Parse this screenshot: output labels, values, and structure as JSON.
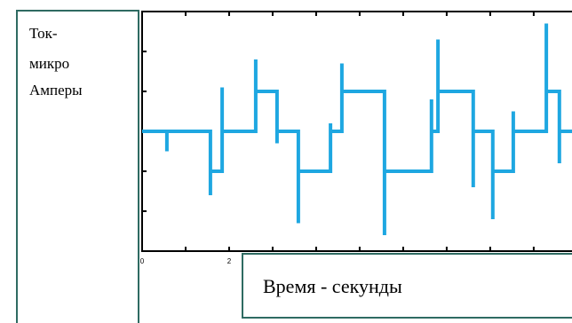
{
  "chart_data": {
    "type": "line",
    "xlabel": "Время - секунды",
    "ylabel_lines": [
      "Ток-",
      "микро",
      "Амперы"
    ],
    "xlim": [
      0,
      9.88
    ],
    "ylim": [
      -3,
      3
    ],
    "x_ticks": [
      0,
      1,
      2,
      3,
      4,
      5,
      6,
      7,
      8,
      9
    ],
    "x_tick_labels": [
      {
        "value": 0,
        "label": "0"
      },
      {
        "value": 2,
        "label": "2"
      }
    ],
    "y_ticks": [
      -2,
      -1,
      0,
      1,
      2
    ],
    "grid": false,
    "series": [
      {
        "x": [
          0,
          0.57,
          0.57,
          0.57,
          1.57,
          1.57,
          1.57,
          1.84,
          1.84,
          1.84,
          2.61,
          2.61,
          2.61,
          3.1,
          3.1,
          3.1,
          3.59,
          3.59,
          3.59,
          4.33,
          4.33,
          4.33,
          4.59,
          4.59,
          4.59,
          5.57,
          5.57,
          5.57,
          6.65,
          6.65,
          6.65,
          6.8,
          6.8,
          6.8,
          7.61,
          7.61,
          7.61,
          8.06,
          8.06,
          8.06,
          8.53,
          8.53,
          8.53,
          9.29,
          9.29,
          9.29,
          9.59,
          9.59,
          9.59,
          9.88
        ],
        "y": [
          0,
          0,
          -0.5,
          0,
          0,
          -1.6,
          -1,
          -1,
          1.1,
          0,
          0,
          1.8,
          1,
          1,
          -0.3,
          0,
          0,
          -2.3,
          -1,
          -1,
          0.2,
          0,
          0,
          1.7,
          1,
          1,
          -2.6,
          -1,
          -1,
          0.8,
          0,
          0,
          2.3,
          1,
          1,
          -1.4,
          0,
          0,
          -2.2,
          -1,
          -1,
          0.5,
          0,
          0,
          2.7,
          1,
          1,
          -0.8,
          0,
          0
        ],
        "color": "#1ea7e1"
      }
    ]
  },
  "colors": {
    "frame": "#000000",
    "box_border": "#2f6b62",
    "trace": "#1ea7e1"
  }
}
